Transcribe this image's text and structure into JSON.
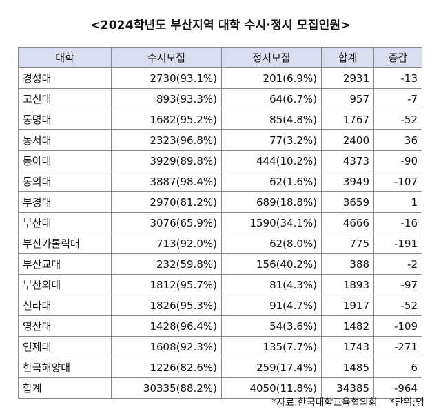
{
  "title": "<2024학년도 부산지역 대학 수시·정시 모집인원>",
  "headers": [
    "대학",
    "수시모집",
    "정시모집",
    "합계",
    "증감"
  ],
  "rows": [
    {
      "name": "경성대",
      "susi": "2730(93.1%)",
      "jeongsi": "201(6.9%)",
      "total": "2931",
      "change": "-13"
    },
    {
      "name": "고신대",
      "susi": "893(93.3%)",
      "jeongsi": "64(6.7%)",
      "total": "957",
      "change": "-7"
    },
    {
      "name": "동명대",
      "susi": "1682(95.2%)",
      "jeongsi": "85(4.8%)",
      "total": "1767",
      "change": "-52"
    },
    {
      "name": "동서대",
      "susi": "2323(96.8%)",
      "jeongsi": "77(3.2%)",
      "total": "2400",
      "change": "36"
    },
    {
      "name": "동아대",
      "susi": "3929(89.8%)",
      "jeongsi": "444(10.2%)",
      "total": "4373",
      "change": "-90"
    },
    {
      "name": "동의대",
      "susi": "3887(98.4%)",
      "jeongsi": "62(1.6%)",
      "total": "3949",
      "change": "-107"
    },
    {
      "name": "부경대",
      "susi": "2970(81.2%)",
      "jeongsi": "689(18.8%)",
      "total": "3659",
      "change": "1"
    },
    {
      "name": "부산대",
      "susi": "3076(65.9%)",
      "jeongsi": "1590(34.1%)",
      "total": "4666",
      "change": "-16"
    },
    {
      "name": "부산가톨릭대",
      "susi": "713(92.0%)",
      "jeongsi": "62(8.0%)",
      "total": "775",
      "change": "-191"
    },
    {
      "name": "부산교대",
      "susi": "232(59.8%)",
      "jeongsi": "156(40.2%)",
      "total": "388",
      "change": "-2"
    },
    {
      "name": "부산외대",
      "susi": "1812(95.7%)",
      "jeongsi": "81(4.3%)",
      "total": "1893",
      "change": "-97"
    },
    {
      "name": "신라대",
      "susi": "1826(95.3%)",
      "jeongsi": "91(4.7%)",
      "total": "1917",
      "change": "-52"
    },
    {
      "name": "영산대",
      "susi": "1428(96.4%)",
      "jeongsi": "54(3.6%)",
      "total": "1482",
      "change": "-109"
    },
    {
      "name": "인제대",
      "susi": "1608(92.3%)",
      "jeongsi": "135(7.7%)",
      "total": "1743",
      "change": "-271"
    },
    {
      "name": "한국해양대",
      "susi": "1226(82.6%)",
      "jeongsi": "259(17.4%)",
      "total": "1485",
      "change": "6"
    },
    {
      "name": "합계",
      "susi": "30335(88.2%)",
      "jeongsi": "4050(11.8%)",
      "total": "34385",
      "change": "-964"
    }
  ],
  "source": "*자료:한국대학교육협의회",
  "unit": "*단위:명",
  "colors": {
    "header_bg": "#d9dff0",
    "border": "#8a8a8a"
  }
}
